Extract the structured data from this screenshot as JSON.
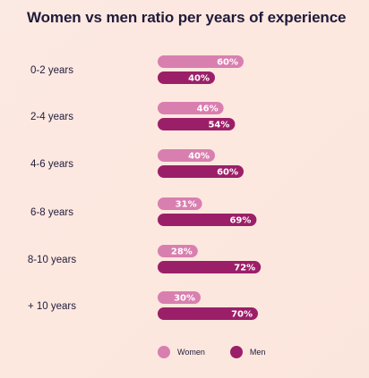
{
  "chart_data": {
    "type": "bar",
    "orientation": "horizontal",
    "title": "Women vs men ratio per years of experience",
    "categories": [
      "0-2 years",
      "2-4 years",
      "4-6 years",
      "6-8 years",
      "8-10 years",
      "+ 10 years"
    ],
    "series": [
      {
        "name": "Women",
        "color": "#d97fb0",
        "values": [
          60,
          46,
          40,
          31,
          28,
          30
        ],
        "labels": [
          "60%",
          "46%",
          "40%",
          "31%",
          "28%",
          "30%"
        ]
      },
      {
        "name": "Men",
        "color": "#9b1f68",
        "values": [
          40,
          54,
          60,
          69,
          72,
          70
        ],
        "labels": [
          "40%",
          "54%",
          "60%",
          "69%",
          "72%",
          "70%"
        ]
      }
    ],
    "unit": "%",
    "grid": false,
    "legend_position": "bottom"
  }
}
